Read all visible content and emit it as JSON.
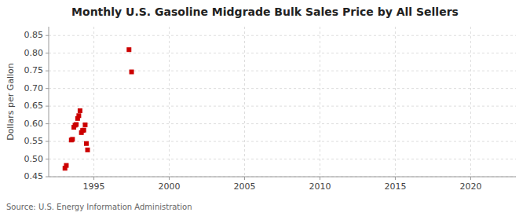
{
  "chart_data": {
    "type": "scatter",
    "title": "Monthly U.S. Gasoline Midgrade Bulk Sales Price by All Sellers",
    "y_label": "Dollars per Gallon",
    "source": "Source: U.S. Energy Information Administration",
    "x": [
      1993.08,
      1993.17,
      1993.5,
      1993.58,
      1993.67,
      1993.75,
      1993.83,
      1993.92,
      1994.0,
      1994.08,
      1994.17,
      1994.25,
      1994.33,
      1994.42,
      1994.5,
      1994.58,
      1997.33,
      1997.5
    ],
    "values": [
      0.474,
      0.482,
      0.554,
      0.556,
      0.59,
      0.596,
      0.598,
      0.615,
      0.623,
      0.637,
      0.575,
      0.581,
      0.582,
      0.597,
      0.544,
      0.526,
      0.81,
      0.747
    ],
    "color": "#cc0000",
    "marker": "square",
    "xlim": [
      1992.0,
      2023.0
    ],
    "ylim": [
      0.45,
      0.875
    ],
    "xticks": [
      1995,
      2000,
      2005,
      2010,
      2015,
      2020
    ],
    "yticks": [
      0.45,
      {
        "value": 0.5,
        "label": "0.50"
      },
      0.55,
      {
        "value": 0.6,
        "label": "0.60"
      },
      0.65,
      {
        "value": 0.7,
        "label": "0.70"
      },
      0.75,
      {
        "value": 0.8,
        "label": "0.80"
      },
      0.85
    ],
    "grid": true
  }
}
